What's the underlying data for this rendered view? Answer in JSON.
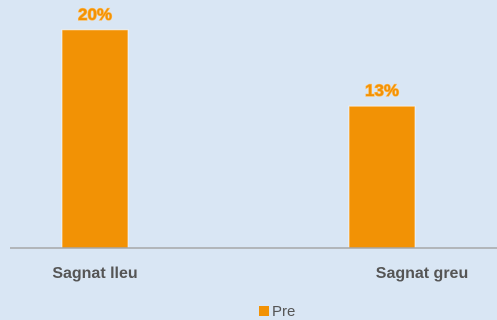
{
  "colors": {
    "background": "#d9e6f4",
    "bar": "#f29205",
    "bar_outline": "#ffffff",
    "label": "#f29205",
    "label_outline": "#ffb74d",
    "axis": "#a6a6a6",
    "text": "#555555"
  },
  "chart_data": {
    "type": "bar",
    "categories": [
      "Sagnat lleu",
      "Sagnat greu"
    ],
    "series": [
      {
        "name": "Pre",
        "values": [
          20,
          13
        ]
      }
    ],
    "data_labels": [
      "20%",
      "13%"
    ],
    "value_unit": "%",
    "ylim": [
      0,
      22
    ],
    "grid": false,
    "legend": {
      "position": "bottom",
      "entries": [
        "Pre"
      ]
    },
    "title": "",
    "xlabel": "",
    "ylabel": ""
  }
}
